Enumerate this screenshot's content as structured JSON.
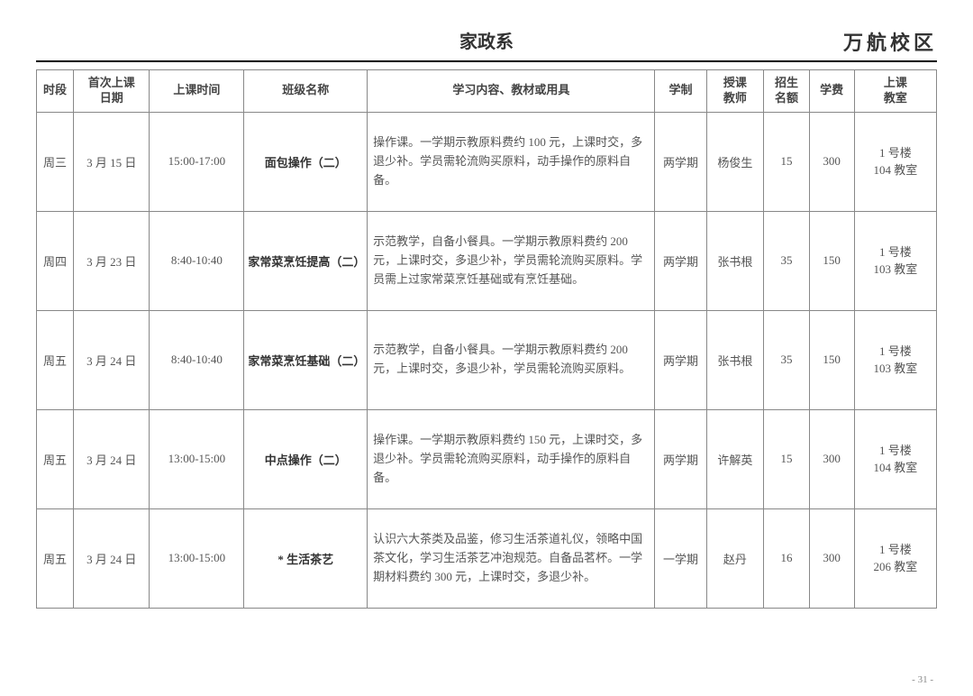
{
  "header": {
    "department": "家政系",
    "campus": "万航校区"
  },
  "columns": {
    "day": "时段",
    "date": "首次上课\n日期",
    "time": "上课时间",
    "class": "班级名称",
    "content": "学习内容、教材或用具",
    "term": "学制",
    "teacher": "授课\n教师",
    "quota": "招生\n名额",
    "fee": "学费",
    "room": "上课\n教室"
  },
  "rows": [
    {
      "day": "周三",
      "date": "3 月 15 日",
      "time": "15:00-17:00",
      "class": "面包操作（二）",
      "content": "操作课。一学期示教原料费约 100 元，上课时交，多退少补。学员需轮流购买原料，动手操作的原料自备。",
      "term": "两学期",
      "teacher": "杨俊生",
      "quota": "15",
      "fee": "300",
      "room": "1 号楼\n104 教室"
    },
    {
      "day": "周四",
      "date": "3 月 23 日",
      "time": "8:40-10:40",
      "class": "家常菜烹饪提高（二）",
      "content": "示范教学，自备小餐具。一学期示教原料费约 200 元，上课时交，多退少补，学员需轮流购买原料。学员需上过家常菜烹饪基础或有烹饪基础。",
      "term": "两学期",
      "teacher": "张书根",
      "quota": "35",
      "fee": "150",
      "room": "1 号楼\n103 教室"
    },
    {
      "day": "周五",
      "date": "3 月 24 日",
      "time": "8:40-10:40",
      "class": "家常菜烹饪基础（二）",
      "content": "示范教学，自备小餐具。一学期示教原料费约 200 元，上课时交，多退少补，学员需轮流购买原料。",
      "term": "两学期",
      "teacher": "张书根",
      "quota": "35",
      "fee": "150",
      "room": "1 号楼\n103 教室"
    },
    {
      "day": "周五",
      "date": "3 月 24 日",
      "time": "13:00-15:00",
      "class": "中点操作（二）",
      "content": "操作课。一学期示教原料费约 150 元，上课时交，多退少补。学员需轮流购买原料，动手操作的原料自备。",
      "term": "两学期",
      "teacher": "许解英",
      "quota": "15",
      "fee": "300",
      "room": "1 号楼\n104 教室"
    },
    {
      "day": "周五",
      "date": "3 月 24 日",
      "time": "13:00-15:00",
      "class": "* 生活茶艺",
      "content": "认识六大茶类及品鉴，修习生活茶道礼仪，领略中国茶文化，学习生活茶艺冲泡规范。自备品茗杯。一学期材料费约 300 元，上课时交，多退少补。",
      "term": "一学期",
      "teacher": "赵丹",
      "quota": "16",
      "fee": "300",
      "room": "1 号楼\n206 教室"
    }
  ],
  "pageNumber": "- 31 -"
}
